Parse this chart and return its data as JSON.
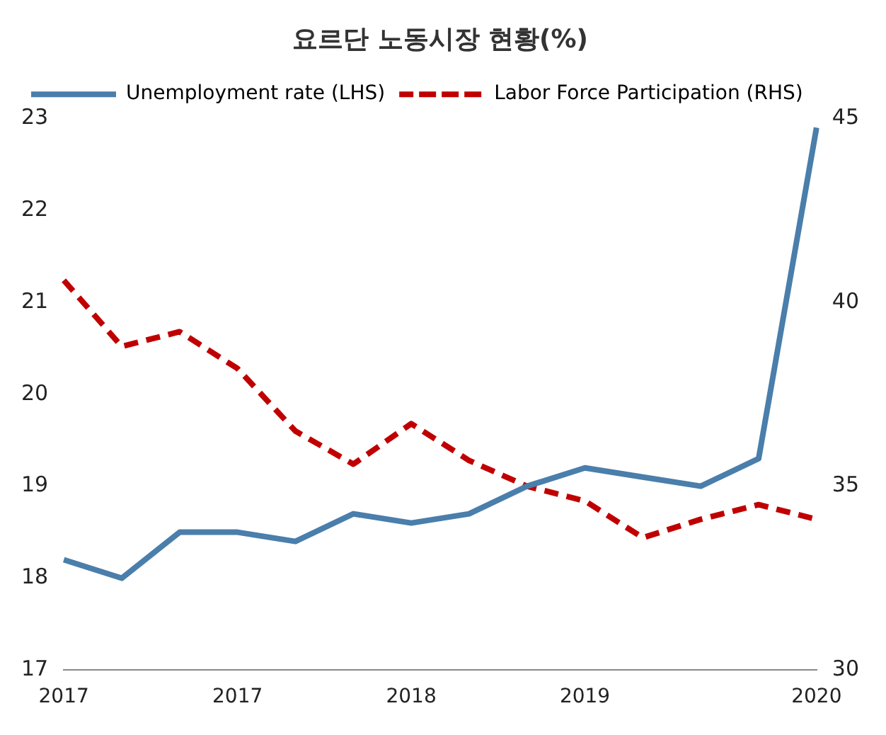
{
  "chart_data": {
    "type": "line",
    "title": "요르단 노동시장 현황(%)",
    "categories": [
      "2017",
      null,
      null,
      "2017",
      null,
      null,
      "2018",
      null,
      null,
      "2019",
      null,
      null,
      null,
      "2020"
    ],
    "series": [
      {
        "name": "Unemployment rate (LHS)",
        "color": "#4a7eab",
        "line_style": "solid",
        "values": [
          18.2,
          18.0,
          18.5,
          18.5,
          18.4,
          18.7,
          18.6,
          18.7,
          19.0,
          19.2,
          19.1,
          19.0,
          19.3,
          22.9
        ]
      },
      {
        "name": "Labor Force Participation (RHS)",
        "color": "#c00000",
        "line_style": "dashed",
        "axis": "y2",
        "values": [
          40.6,
          38.8,
          39.2,
          38.2,
          36.5,
          35.6,
          36.7,
          35.7,
          35.0,
          34.6,
          33.6,
          34.1,
          34.5,
          34.1
        ]
      }
    ],
    "ylim": [
      17,
      23
    ],
    "yticks": [
      17,
      18,
      19,
      20,
      21,
      22,
      23
    ],
    "y2lim": [
      30,
      45
    ],
    "y2ticks": [
      30,
      35,
      40,
      45
    ],
    "grid": false,
    "legend": "top left",
    "marker": "none"
  }
}
